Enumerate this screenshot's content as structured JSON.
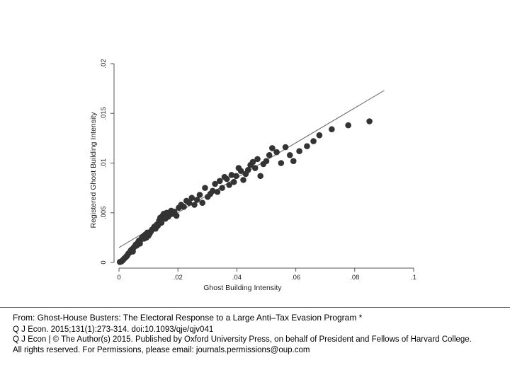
{
  "chart_data": {
    "type": "scatter",
    "title": "",
    "xlabel": "Ghost Building Intensity",
    "ylabel": "Registered Ghost Building Intensity",
    "xlim": [
      0,
      0.1
    ],
    "ylim": [
      0,
      0.02
    ],
    "x_ticks": [
      0,
      0.02,
      0.04,
      0.06,
      0.08,
      0.1
    ],
    "x_tick_labels": [
      "0",
      ".02",
      ".04",
      ".06",
      ".08",
      ".1"
    ],
    "y_ticks": [
      0,
      0.005,
      0.01,
      0.015,
      0.02
    ],
    "y_tick_labels": [
      "0",
      ".005",
      ".01",
      ".015",
      ".02"
    ],
    "grid": false,
    "legend": "none",
    "colors": {
      "points": "#333333",
      "fit_line": "#666666",
      "axes": "#555555"
    },
    "fit_line": {
      "x": [
        0,
        0.09
      ],
      "y": [
        0.0015,
        0.0173
      ]
    },
    "points": {
      "x": [
        0.0003,
        0.0008,
        0.0012,
        0.0015,
        0.0018,
        0.0022,
        0.0025,
        0.0028,
        0.0032,
        0.0036,
        0.004,
        0.0043,
        0.0047,
        0.005,
        0.0053,
        0.0057,
        0.006,
        0.0064,
        0.0068,
        0.0071,
        0.0074,
        0.0078,
        0.0082,
        0.0085,
        0.0089,
        0.0093,
        0.0096,
        0.01,
        0.0104,
        0.0108,
        0.0112,
        0.0116,
        0.012,
        0.0124,
        0.0128,
        0.0132,
        0.0136,
        0.014,
        0.0144,
        0.0148,
        0.0152,
        0.0157,
        0.0162,
        0.0167,
        0.0172,
        0.0177,
        0.0182,
        0.0188,
        0.0195,
        0.0203,
        0.0211,
        0.022,
        0.0229,
        0.0238,
        0.0247,
        0.0256,
        0.0265,
        0.0274,
        0.0283,
        0.0292,
        0.0301,
        0.031,
        0.0318,
        0.0326,
        0.0334,
        0.0342,
        0.035,
        0.0358,
        0.0366,
        0.0374,
        0.0382,
        0.039,
        0.0398,
        0.0406,
        0.0414,
        0.0422,
        0.043,
        0.0438,
        0.0446,
        0.0454,
        0.0462,
        0.047,
        0.048,
        0.049,
        0.05,
        0.051,
        0.052,
        0.0535,
        0.055,
        0.0565,
        0.058,
        0.0592,
        0.0612,
        0.0638,
        0.066,
        0.068,
        0.0722,
        0.0778,
        0.085
      ],
      "y": [
        5e-05,
        0.0001,
        0.0002,
        0.0003,
        0.0004,
        0.0005,
        0.0006,
        0.0007,
        0.0009,
        0.001,
        0.0012,
        0.0013,
        0.0011,
        0.0015,
        0.0016,
        0.0018,
        0.0017,
        0.002,
        0.0022,
        0.0019,
        0.0023,
        0.0025,
        0.0026,
        0.0024,
        0.0028,
        0.0025,
        0.003,
        0.0027,
        0.0029,
        0.0031,
        0.0033,
        0.0034,
        0.0036,
        0.0034,
        0.0038,
        0.0037,
        0.0042,
        0.0045,
        0.004,
        0.0047,
        0.0049,
        0.0044,
        0.005,
        0.0046,
        0.0048,
        0.0052,
        0.0049,
        0.0051,
        0.0047,
        0.0055,
        0.0058,
        0.0056,
        0.0062,
        0.006,
        0.0065,
        0.0058,
        0.0063,
        0.0068,
        0.006,
        0.0075,
        0.0066,
        0.0069,
        0.0072,
        0.0079,
        0.0071,
        0.0082,
        0.0075,
        0.0086,
        0.0084,
        0.0078,
        0.0088,
        0.0081,
        0.0087,
        0.0095,
        0.0092,
        0.0083,
        0.0089,
        0.0093,
        0.0098,
        0.0101,
        0.0095,
        0.0104,
        0.0087,
        0.0099,
        0.0102,
        0.0108,
        0.0115,
        0.0111,
        0.01,
        0.0116,
        0.0108,
        0.0102,
        0.0112,
        0.0117,
        0.0122,
        0.0128,
        0.0134,
        0.0138,
        0.0142
      ]
    }
  },
  "caption": {
    "title_line": "From:  Ghost-House Busters: The Electoral Response to a Large Anti–Tax Evasion Program *",
    "citation_line": "Q J Econ. 2015;131(1):273-314. doi:10.1093/qje/qjv041",
    "copyright_line_1": "Q J Econ | © The Author(s) 2015. Published by Oxford University Press, on behalf of President and Fellows of Harvard College.",
    "copyright_line_2": "All rights reserved. For Permissions, please email: journals.permissions@oup.com"
  }
}
